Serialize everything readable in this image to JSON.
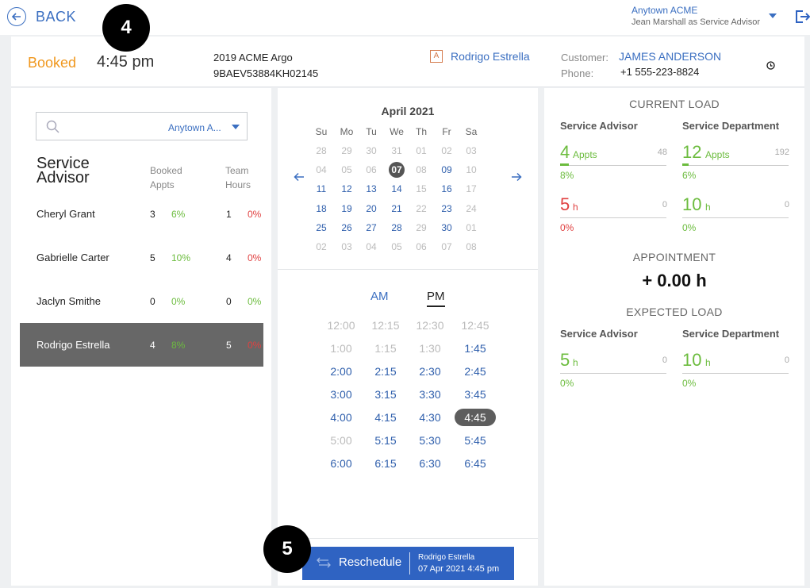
{
  "nav": {
    "back_label": "BACK"
  },
  "badges": {
    "step_time": "4",
    "step_reschedule": "5"
  },
  "account": {
    "dealer": "Anytown ACME",
    "user": "Jean Marshall as Service Advisor"
  },
  "booking": {
    "status": "Booked",
    "time": "4:45 pm",
    "vehicle_model": "2019 ACME Argo",
    "vin": "9BAEV53884KH02145",
    "advisor_initial": "A",
    "advisor_name": "Rodrigo Estrella",
    "customer_label": "Customer:",
    "customer_name": "JAMES ANDERSON",
    "phone_label": "Phone:",
    "phone": "+1 555-223-8824"
  },
  "advisor_panel": {
    "location": "Anytown A...",
    "title_line1": "Service",
    "title_line2": "Advisor",
    "col_booked_1": "Booked",
    "col_booked_2": "Appts",
    "col_team_1": "Team",
    "col_team_2": "Hours",
    "advisors": [
      {
        "name": "Cheryl Grant",
        "booked": "3",
        "booked_pct": "6%",
        "hours": "1",
        "hours_pct": "0%",
        "booked_pct_color": "green",
        "hours_pct_color": "red"
      },
      {
        "name": "Gabrielle Carter",
        "booked": "5",
        "booked_pct": "10%",
        "hours": "4",
        "hours_pct": "0%",
        "booked_pct_color": "green",
        "hours_pct_color": "red"
      },
      {
        "name": "Jaclyn Smithe",
        "booked": "0",
        "booked_pct": "0%",
        "hours": "0",
        "hours_pct": "0%",
        "booked_pct_color": "green",
        "hours_pct_color": "green"
      },
      {
        "name": "Rodrigo Estrella",
        "booked": "4",
        "booked_pct": "8%",
        "hours": "5",
        "hours_pct": "0%",
        "booked_pct_color": "green",
        "hours_pct_color": "red",
        "selected": true
      }
    ]
  },
  "calendar": {
    "month": "April 2021",
    "weekdays": [
      "Su",
      "Mo",
      "Tu",
      "We",
      "Th",
      "Fr",
      "Sa"
    ],
    "weeks": [
      [
        [
          "28",
          "other"
        ],
        [
          "29",
          "other"
        ],
        [
          "30",
          "other"
        ],
        [
          "31",
          "other"
        ],
        [
          "01",
          "dis"
        ],
        [
          "02",
          "dis"
        ],
        [
          "03",
          "dis"
        ]
      ],
      [
        [
          "04",
          "dis"
        ],
        [
          "05",
          "dis"
        ],
        [
          "06",
          "dis"
        ],
        [
          "07",
          "sel"
        ],
        [
          "08",
          "dis"
        ],
        [
          "09",
          "avail"
        ],
        [
          "10",
          "dis"
        ]
      ],
      [
        [
          "11",
          "avail"
        ],
        [
          "12",
          "avail"
        ],
        [
          "13",
          "avail"
        ],
        [
          "14",
          "avail"
        ],
        [
          "15",
          "dis"
        ],
        [
          "16",
          "avail"
        ],
        [
          "17",
          "dis"
        ]
      ],
      [
        [
          "18",
          "avail"
        ],
        [
          "19",
          "avail"
        ],
        [
          "20",
          "avail"
        ],
        [
          "21",
          "avail"
        ],
        [
          "22",
          "dis"
        ],
        [
          "23",
          "avail"
        ],
        [
          "24",
          "dis"
        ]
      ],
      [
        [
          "25",
          "avail"
        ],
        [
          "26",
          "avail"
        ],
        [
          "27",
          "avail"
        ],
        [
          "28",
          "avail"
        ],
        [
          "29",
          "dis"
        ],
        [
          "30",
          "avail"
        ],
        [
          "01",
          "other"
        ]
      ],
      [
        [
          "02",
          "other"
        ],
        [
          "03",
          "other"
        ],
        [
          "04",
          "other"
        ],
        [
          "05",
          "other"
        ],
        [
          "06",
          "other"
        ],
        [
          "07",
          "other"
        ],
        [
          "08",
          "other"
        ]
      ]
    ],
    "am_label": "AM",
    "pm_label": "PM",
    "slots": [
      [
        [
          "12:00",
          "dis"
        ],
        [
          "12:15",
          "dis"
        ],
        [
          "12:30",
          "dis"
        ],
        [
          "12:45",
          "dis"
        ]
      ],
      [
        [
          "1:00",
          "dis"
        ],
        [
          "1:15",
          "dis"
        ],
        [
          "1:30",
          "dis"
        ],
        [
          "1:45",
          "av"
        ]
      ],
      [
        [
          "2:00",
          "av"
        ],
        [
          "2:15",
          "av"
        ],
        [
          "2:30",
          "av"
        ],
        [
          "2:45",
          "av"
        ]
      ],
      [
        [
          "3:00",
          "av"
        ],
        [
          "3:15",
          "av"
        ],
        [
          "3:30",
          "av"
        ],
        [
          "3:45",
          "av"
        ]
      ],
      [
        [
          "4:00",
          "av"
        ],
        [
          "4:15",
          "av"
        ],
        [
          "4:30",
          "av"
        ],
        [
          "4:45",
          "sel"
        ]
      ],
      [
        [
          "5:00",
          "dis"
        ],
        [
          "5:15",
          "av"
        ],
        [
          "5:30",
          "av"
        ],
        [
          "5:45",
          "av"
        ]
      ],
      [
        [
          "6:00",
          "av"
        ],
        [
          "6:15",
          "av"
        ],
        [
          "6:30",
          "av"
        ],
        [
          "6:45",
          "av"
        ]
      ]
    ],
    "reschedule_label": "Reschedule",
    "reschedule_advisor": "Rodrigo Estrella",
    "reschedule_when": "07 Apr 2021 4:45 pm"
  },
  "load": {
    "current_title": "CURRENT LOAD",
    "appointment_title": "APPOINTMENT",
    "appointment_value": "+ 0.00 h",
    "expected_title": "EXPECTED LOAD",
    "col_advisor": "Service Advisor",
    "col_department": "Service Department",
    "current": {
      "advisor_appts": {
        "value": "4",
        "unit": "Appts",
        "max": "48",
        "pct": "8%",
        "fill": 0.08,
        "color": "#6cbc3e",
        "pct_color": "#6cbc3e"
      },
      "dept_appts": {
        "value": "12",
        "unit": "Appts",
        "max": "192",
        "pct": "6%",
        "fill": 0.06,
        "color": "#6cbc3e",
        "pct_color": "#6cbc3e"
      },
      "advisor_hours": {
        "value": "5",
        "unit": "h",
        "max": "0",
        "pct": "0%",
        "fill": 0,
        "color": "#e04141",
        "pct_color": "#e04141"
      },
      "dept_hours": {
        "value": "10",
        "unit": "h",
        "max": "0",
        "pct": "0%",
        "fill": 0,
        "color": "#6cbc3e",
        "pct_color": "#6cbc3e"
      }
    },
    "expected": {
      "advisor_hours": {
        "value": "5",
        "unit": "h",
        "max": "0",
        "pct": "0%",
        "fill": 0,
        "color": "#6cbc3e",
        "pct_color": "#6cbc3e"
      },
      "dept_hours": {
        "value": "10",
        "unit": "h",
        "max": "0",
        "pct": "0%",
        "fill": 0,
        "color": "#6cbc3e",
        "pct_color": "#6cbc3e"
      }
    }
  },
  "colors": {
    "accent": "#3b6fc1",
    "booked": "#f0981f",
    "good": "#6cbc3e",
    "bad": "#e04141",
    "button": "#2f63c2"
  }
}
